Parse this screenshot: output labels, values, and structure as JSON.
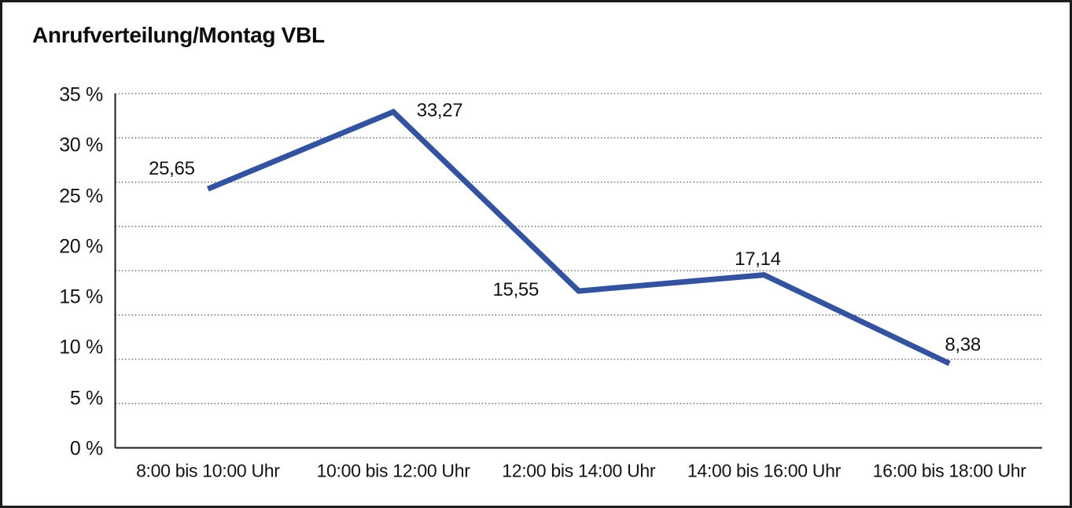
{
  "header": {
    "title": "Anrufverteilung/Montag VBL"
  },
  "chart_data": {
    "type": "line",
    "title": "Anrufverteilung/Montag VBL",
    "categories": [
      "8:00 bis 10:00 Uhr",
      "10:00 bis 12:00 Uhr",
      "12:00 bis 14:00 Uhr",
      "14:00 bis 16:00 Uhr",
      "16:00 bis 18:00 Uhr"
    ],
    "values": [
      25.65,
      33.27,
      15.55,
      17.14,
      8.38
    ],
    "value_labels": [
      "25,65",
      "33,27",
      "15,55",
      "17,14",
      "8,38"
    ],
    "xlabel": "",
    "ylabel": "",
    "ylim": [
      0,
      35
    ],
    "ytick_step": 5,
    "ytick_labels_top_down": [
      "35 %",
      "30 %",
      "25 %",
      "20 %",
      "15 %",
      "10 %",
      "5 %",
      "0 %"
    ],
    "grid": "horizontal-dotted",
    "gridline_count_including_bottom_axis": 9,
    "legend": "none",
    "line_color": "#33539e",
    "axis_color": "#1c1c1c",
    "grid_color": "#616161",
    "text_color": "#141414",
    "background_color": "#ffffff"
  }
}
